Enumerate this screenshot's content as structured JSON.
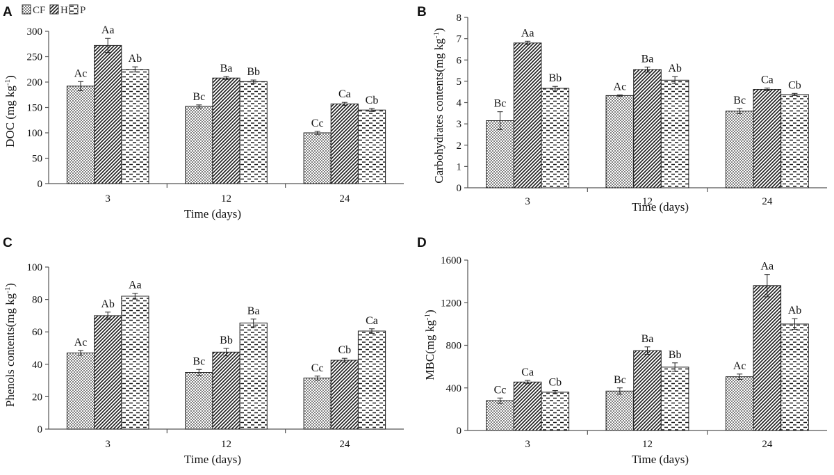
{
  "legend": [
    {
      "key": "CF",
      "pattern": "dots"
    },
    {
      "key": "H",
      "pattern": "diag"
    },
    {
      "key": "P",
      "pattern": "dash"
    }
  ],
  "colors": {
    "bar_fill": "#ffffff",
    "pattern_ink": "#1a1a1a",
    "axis": "#555555",
    "text": "#111111"
  },
  "chart_data": [
    {
      "panel": "A",
      "type": "bar",
      "title": "",
      "xlabel": "Time (days)",
      "ylabel_main": "DOC (mg kg",
      "ylabel_sup": "-1",
      "ylabel_end": ")",
      "categories": [
        "3",
        "12",
        "24"
      ],
      "ylim": [
        0,
        300
      ],
      "yticks": [
        "0",
        "50",
        "100",
        "150",
        "200",
        "250",
        "300"
      ],
      "series": [
        {
          "name": "CF",
          "values": [
            192,
            152,
            100
          ],
          "errors": [
            9,
            3,
            3
          ],
          "labels": [
            "Ac",
            "Bc",
            "Cc"
          ]
        },
        {
          "name": "H",
          "values": [
            272,
            208,
            157
          ],
          "errors": [
            14,
            3,
            3
          ],
          "labels": [
            "Aa",
            "Ba",
            "Ca"
          ]
        },
        {
          "name": "P",
          "values": [
            225,
            201,
            145
          ],
          "errors": [
            5,
            3,
            3
          ],
          "labels": [
            "Ab",
            "Bb",
            "Cb"
          ]
        }
      ]
    },
    {
      "panel": "B",
      "type": "bar",
      "title": "",
      "xlabel": "Time (days)",
      "ylabel_main": "Carbohydrates contents(mg kg",
      "ylabel_sup": "-1",
      "ylabel_end": ")",
      "categories": [
        "3",
        "12",
        "24"
      ],
      "ylim": [
        0,
        8
      ],
      "yticks": [
        "0",
        "1",
        "2",
        "3",
        "4",
        "5",
        "6",
        "7",
        "8"
      ],
      "series": [
        {
          "name": "CF",
          "values": [
            3.15,
            4.33,
            3.6
          ],
          "errors": [
            0.42,
            0.03,
            0.12
          ],
          "labels": [
            "Bc",
            "Ac",
            "Bc"
          ]
        },
        {
          "name": "H",
          "values": [
            6.8,
            5.55,
            4.62
          ],
          "errors": [
            0.08,
            0.12,
            0.06
          ],
          "labels": [
            "Aa",
            "Ba",
            "Ca"
          ]
        },
        {
          "name": "P",
          "values": [
            4.67,
            5.05,
            4.38
          ],
          "errors": [
            0.09,
            0.17,
            0.05
          ],
          "labels": [
            "Bb",
            "Ab",
            "Cb"
          ]
        }
      ]
    },
    {
      "panel": "C",
      "type": "bar",
      "title": "",
      "xlabel": "Time (days)",
      "ylabel_main": "Phenols contents(mg kg",
      "ylabel_sup": "-1",
      "ylabel_end": ")",
      "categories": [
        "3",
        "12",
        "24"
      ],
      "ylim": [
        0,
        100
      ],
      "yticks": [
        "0",
        "20",
        "40",
        "60",
        "80",
        "100"
      ],
      "series": [
        {
          "name": "CF",
          "values": [
            47,
            35,
            31.5
          ],
          "errors": [
            1.5,
            1.8,
            1.2
          ],
          "labels": [
            "Ac",
            "Bc",
            "Cc"
          ]
        },
        {
          "name": "H",
          "values": [
            70,
            47.5,
            42.5
          ],
          "errors": [
            2.2,
            2.3,
            1.2
          ],
          "labels": [
            "Ab",
            "Bb",
            "Cb"
          ]
        },
        {
          "name": "P",
          "values": [
            82,
            65.5,
            60.5
          ],
          "errors": [
            1.8,
            2.4,
            1.4
          ],
          "labels": [
            "Aa",
            "Ba",
            "Ca"
          ]
        }
      ]
    },
    {
      "panel": "D",
      "type": "bar",
      "title": "",
      "xlabel": "Time (days)",
      "ylabel_main": "MBC(mg kg",
      "ylabel_sup": "-1",
      "ylabel_end": ")",
      "categories": [
        "3",
        "12",
        "24"
      ],
      "ylim": [
        0,
        1600
      ],
      "yticks": [
        "0",
        "400",
        "800",
        "1200",
        "1600"
      ],
      "series": [
        {
          "name": "CF",
          "values": [
            280,
            370,
            505
          ],
          "errors": [
            25,
            30,
            25
          ],
          "labels": [
            "Cc",
            "Bc",
            "Ac"
          ]
        },
        {
          "name": "H",
          "values": [
            455,
            750,
            1360
          ],
          "errors": [
            15,
            35,
            105
          ],
          "labels": [
            "Ca",
            "Ba",
            "Aa"
          ]
        },
        {
          "name": "P",
          "values": [
            360,
            595,
            1000
          ],
          "errors": [
            15,
            40,
            50
          ],
          "labels": [
            "Cb",
            "Bb",
            "Ab"
          ]
        }
      ]
    }
  ]
}
